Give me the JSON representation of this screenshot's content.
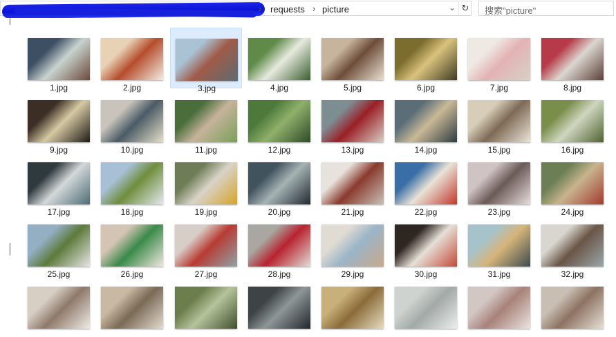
{
  "address_bar": {
    "path": [
      {
        "label": "requests"
      },
      {
        "label": "picture"
      }
    ],
    "separator": "›",
    "dropdown_glyph": "⌄",
    "refresh_glyph": "↻"
  },
  "search": {
    "placeholder": "搜索\"picture\""
  },
  "files": [
    {
      "name": "1.jpg",
      "c1": "#3d4f63",
      "c2": "#c9d3cf",
      "c3": "#6b4a3a"
    },
    {
      "name": "2.jpg",
      "c1": "#e8d2b5",
      "c2": "#b54d2d",
      "c3": "#f4ede2"
    },
    {
      "name": "3.jpg",
      "c1": "#a9c2d4",
      "c2": "#a05b47",
      "c3": "#5d6b72",
      "selected": true
    },
    {
      "name": "4.jpg",
      "c1": "#5f8a48",
      "c2": "#e7eadf",
      "c3": "#3b5e2f"
    },
    {
      "name": "5.jpg",
      "c1": "#c7b49c",
      "c2": "#6e4e3a",
      "c3": "#e9e0d0"
    },
    {
      "name": "6.jpg",
      "c1": "#7b6d2e",
      "c2": "#d9c27d",
      "c3": "#3f3a22"
    },
    {
      "name": "7.jpg",
      "c1": "#efe9e3",
      "c2": "#e3b3b3",
      "c3": "#d8d0c6"
    },
    {
      "name": "8.jpg",
      "c1": "#b73a48",
      "c2": "#dcd6d0",
      "c3": "#5b4038"
    },
    {
      "name": "9.jpg",
      "c1": "#3b2e24",
      "c2": "#d6c9a3",
      "c3": "#1f1a16"
    },
    {
      "name": "10.jpg",
      "c1": "#c8c4bc",
      "c2": "#4a5a66",
      "c3": "#e6e1c7"
    },
    {
      "name": "11.jpg",
      "c1": "#4a6e3b",
      "c2": "#c5b39a",
      "c3": "#7aa05b"
    },
    {
      "name": "12.jpg",
      "c1": "#4d7a3a",
      "c2": "#8fb06b",
      "c3": "#2e4a26"
    },
    {
      "name": "13.jpg",
      "c1": "#7d8e93",
      "c2": "#9a1f26",
      "c3": "#d8d0c5"
    },
    {
      "name": "14.jpg",
      "c1": "#5b6e78",
      "c2": "#c9b996",
      "c3": "#2f3b42"
    },
    {
      "name": "15.jpg",
      "c1": "#d7cdb8",
      "c2": "#7e6a56",
      "c3": "#ebe5d9"
    },
    {
      "name": "16.jpg",
      "c1": "#7a8e4c",
      "c2": "#cfd6bf",
      "c3": "#4e6231"
    },
    {
      "name": "17.jpg",
      "c1": "#2f3a3f",
      "c2": "#d4d8d9",
      "c3": "#4d6c73"
    },
    {
      "name": "18.jpg",
      "c1": "#a8c0d6",
      "c2": "#6f8e3d",
      "c3": "#e3e9ee"
    },
    {
      "name": "19.jpg",
      "c1": "#6e7d55",
      "c2": "#d9d3c8",
      "c3": "#d4a32a"
    },
    {
      "name": "20.jpg",
      "c1": "#41535d",
      "c2": "#a6b3b5",
      "c3": "#20292e"
    },
    {
      "name": "21.jpg",
      "c1": "#e7e2dc",
      "c2": "#8a3a2e",
      "c3": "#c9c1b8"
    },
    {
      "name": "22.jpg",
      "c1": "#3a6ea6",
      "c2": "#e8e3d6",
      "c3": "#c3372e"
    },
    {
      "name": "23.jpg",
      "c1": "#cfc3c3",
      "c2": "#6b5a57",
      "c3": "#e8dede"
    },
    {
      "name": "24.jpg",
      "c1": "#6c7e54",
      "c2": "#c7b48e",
      "c3": "#a33a2c"
    },
    {
      "name": "25.jpg",
      "c1": "#94aec4",
      "c2": "#5d7a3c",
      "c3": "#e5e6e2"
    },
    {
      "name": "26.jpg",
      "c1": "#d3c4b4",
      "c2": "#3a8a4a",
      "c3": "#f0e8df"
    },
    {
      "name": "27.jpg",
      "c1": "#d7cfc7",
      "c2": "#b83b33",
      "c3": "#8fa4a8"
    },
    {
      "name": "28.jpg",
      "c1": "#a8a7a1",
      "c2": "#b8232f",
      "c3": "#e1ddd6"
    },
    {
      "name": "29.jpg",
      "c1": "#e0dbd3",
      "c2": "#9bb5c8",
      "c3": "#c8a98b"
    },
    {
      "name": "30.jpg",
      "c1": "#2e2620",
      "c2": "#e6e0d6",
      "c3": "#c24a3a"
    },
    {
      "name": "31.jpg",
      "c1": "#a6c3cc",
      "c2": "#d6b57a",
      "c3": "#3d4a4e"
    },
    {
      "name": "32.jpg",
      "c1": "#d9d6cf",
      "c2": "#6a5546",
      "c3": "#9aa7ab"
    },
    {
      "name": "",
      "c1": "#d8cfc4",
      "c2": "#8e7a6a",
      "c3": "#f0ebe4"
    },
    {
      "name": "",
      "c1": "#c9b9a2",
      "c2": "#7a6a56",
      "c3": "#e4dccf"
    },
    {
      "name": "",
      "c1": "#6b7e4c",
      "c2": "#b4c39a",
      "c3": "#3e4f2c"
    },
    {
      "name": "",
      "c1": "#3e4346",
      "c2": "#8f9698",
      "c3": "#20262a"
    },
    {
      "name": "",
      "c1": "#c8b07a",
      "c2": "#8a6c3a",
      "c3": "#e8dcc0"
    },
    {
      "name": "",
      "c1": "#cfd3d0",
      "c2": "#a2a9a6",
      "c3": "#eceeed"
    },
    {
      "name": "",
      "c1": "#d3c7c4",
      "c2": "#a8827a",
      "c3": "#ece4e0"
    },
    {
      "name": "",
      "c1": "#c8beb2",
      "c2": "#8d7362",
      "c3": "#e8e0d6"
    }
  ]
}
